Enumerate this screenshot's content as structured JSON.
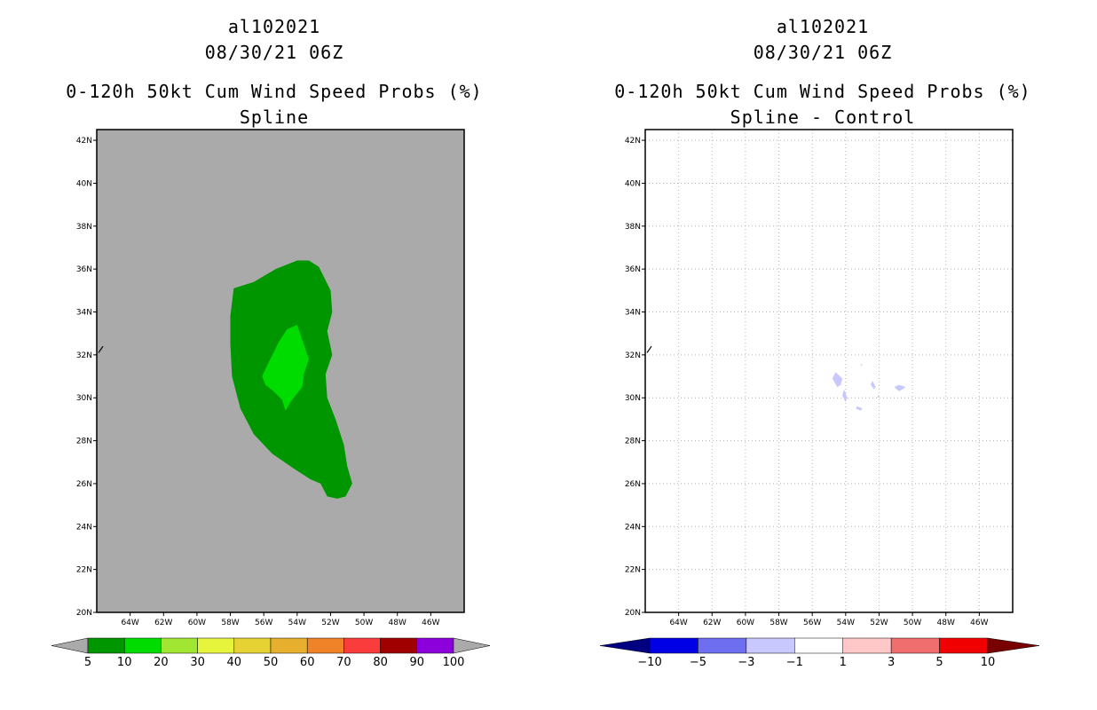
{
  "chart_data": [
    {
      "type": "filled-contour-map",
      "storm_id": "al102021",
      "datetime": "08/30/21 06Z",
      "title": "0-120h 50kt Cum Wind Speed Probs (%)",
      "subtitle": "Spline",
      "lon_range": [
        -66,
        -44
      ],
      "lat_range": [
        20,
        42.5
      ],
      "lat_ticks": [
        "42N",
        "40N",
        "38N",
        "36N",
        "34N",
        "32N",
        "30N",
        "28N",
        "26N",
        "24N",
        "22N",
        "20N"
      ],
      "lon_ticks": [
        "64W",
        "62W",
        "60W",
        "58W",
        "56W",
        "54W",
        "52W",
        "50W",
        "48W",
        "46W"
      ],
      "grid": false,
      "background": "#aaaaaa",
      "regions": [
        {
          "level": "5-10",
          "color": "#009600",
          "polygon": [
            [
              -57.8,
              35.1
            ],
            [
              -56.6,
              35.4
            ],
            [
              -55.3,
              36
            ],
            [
              -54,
              36.4
            ],
            [
              -53.3,
              36.4
            ],
            [
              -52.7,
              36.1
            ],
            [
              -52,
              35
            ],
            [
              -51.9,
              34
            ],
            [
              -52.2,
              33.1
            ],
            [
              -51.9,
              32
            ],
            [
              -52.3,
              31.1
            ],
            [
              -52.2,
              30
            ],
            [
              -51.7,
              29
            ],
            [
              -51.2,
              27.8
            ],
            [
              -51,
              26.8
            ],
            [
              -50.7,
              26
            ],
            [
              -51.1,
              25.4
            ],
            [
              -51.6,
              25.3
            ],
            [
              -52.2,
              25.4
            ],
            [
              -52.6,
              26
            ],
            [
              -53.2,
              26.2
            ],
            [
              -54.2,
              26.7
            ],
            [
              -55.5,
              27.4
            ],
            [
              -56.6,
              28.3
            ],
            [
              -57.4,
              29.5
            ],
            [
              -57.9,
              31
            ],
            [
              -58,
              32.5
            ],
            [
              -58,
              33.8
            ],
            [
              -57.8,
              35.1
            ]
          ]
        },
        {
          "level": "10-20",
          "color": "#00dc00",
          "polygon": [
            [
              -55.8,
              31.5
            ],
            [
              -55.1,
              32.6
            ],
            [
              -54.6,
              33.2
            ],
            [
              -54,
              33.4
            ],
            [
              -53.6,
              32.5
            ],
            [
              -53.3,
              31.8
            ],
            [
              -53.6,
              31.1
            ],
            [
              -53.7,
              30.5
            ],
            [
              -54.1,
              30.1
            ],
            [
              -54.4,
              29.8
            ],
            [
              -54.7,
              29.4
            ],
            [
              -54.9,
              29.9
            ],
            [
              -55.4,
              30.3
            ],
            [
              -55.9,
              30.6
            ],
            [
              -56.1,
              31
            ],
            [
              -55.8,
              31.5
            ]
          ]
        }
      ],
      "colorbar": {
        "labels": [
          "5",
          "10",
          "20",
          "30",
          "40",
          "50",
          "60",
          "70",
          "80",
          "90",
          "100"
        ],
        "colors": [
          "#009600",
          "#00dc00",
          "#a0e632",
          "#e6f53c",
          "#e6d232",
          "#e6af2d",
          "#f08228",
          "#fa3c3c",
          "#a00000",
          "#8c00dc"
        ],
        "under_color": "#aaaaaa",
        "over_color": "#aaaaaa"
      }
    },
    {
      "type": "filled-contour-map",
      "storm_id": "al102021",
      "datetime": "08/30/21 06Z",
      "title": "0-120h 50kt Cum Wind Speed Probs (%)",
      "subtitle": "Spline - Control",
      "lon_range": [
        -66,
        -44
      ],
      "lat_range": [
        20,
        42.5
      ],
      "lat_ticks": [
        "42N",
        "40N",
        "38N",
        "36N",
        "34N",
        "32N",
        "30N",
        "28N",
        "26N",
        "24N",
        "22N",
        "20N"
      ],
      "lon_ticks": [
        "64W",
        "62W",
        "60W",
        "58W",
        "56W",
        "54W",
        "52W",
        "50W",
        "48W",
        "46W"
      ],
      "grid": true,
      "background": "#ffffff",
      "regions": [
        {
          "level": "-3 to -1",
          "color": "#c8c8ff",
          "polygon": [
            [
              -54.6,
              31.2
            ],
            [
              -54.2,
              30.9
            ],
            [
              -54.3,
              30.6
            ],
            [
              -54.5,
              30.5
            ],
            [
              -54.8,
              30.9
            ],
            [
              -54.6,
              31.2
            ]
          ]
        },
        {
          "level": "-3 to -1",
          "color": "#c8c8ff",
          "polygon": [
            [
              -54.1,
              30.4
            ],
            [
              -53.9,
              30
            ],
            [
              -54,
              29.8
            ],
            [
              -54.2,
              30.1
            ],
            [
              -54.1,
              30.4
            ]
          ]
        },
        {
          "level": "-3 to -1",
          "color": "#c8c8ff",
          "polygon": [
            [
              -52.4,
              30.8
            ],
            [
              -52.2,
              30.5
            ],
            [
              -52.3,
              30.4
            ],
            [
              -52.5,
              30.6
            ],
            [
              -52.4,
              30.8
            ]
          ]
        },
        {
          "level": "-3 to -1",
          "color": "#c8c8ff",
          "polygon": [
            [
              -53.3,
              29.6
            ],
            [
              -53,
              29.5
            ],
            [
              -53.1,
              29.4
            ],
            [
              -53.4,
              29.5
            ],
            [
              -53.3,
              29.6
            ]
          ]
        },
        {
          "level": "-3 to -1",
          "color": "#c8c8ff",
          "polygon": [
            [
              -50.8,
              30.6
            ],
            [
              -50.4,
              30.5
            ],
            [
              -50.8,
              30.3
            ],
            [
              -51.1,
              30.5
            ],
            [
              -50.8,
              30.6
            ]
          ]
        },
        {
          "level": "-3 to -1",
          "color": "#c8c8ff",
          "polygon": [
            [
              -53.05,
              31.6
            ],
            [
              -53,
              31.5
            ],
            [
              -53.1,
              31.5
            ],
            [
              -53.05,
              31.6
            ]
          ]
        },
        {
          "level": "-3 to -1",
          "color": "#c8c8ff",
          "polygon": [
            [
              -52.05,
              30.15
            ],
            [
              -52,
              30
            ],
            [
              -52.1,
              30
            ],
            [
              -52.05,
              30.15
            ]
          ]
        }
      ],
      "colorbar": {
        "labels": [
          "-10",
          "-5",
          "-3",
          "-1",
          "1",
          "3",
          "5",
          "10"
        ],
        "colors": [
          "#0000e6",
          "#6e6ef0",
          "#c8c8ff",
          "#ffffff",
          "#ffc8c8",
          "#f06e6e",
          "#f00000"
        ],
        "under_color": "#000080",
        "over_color": "#780000"
      }
    }
  ]
}
